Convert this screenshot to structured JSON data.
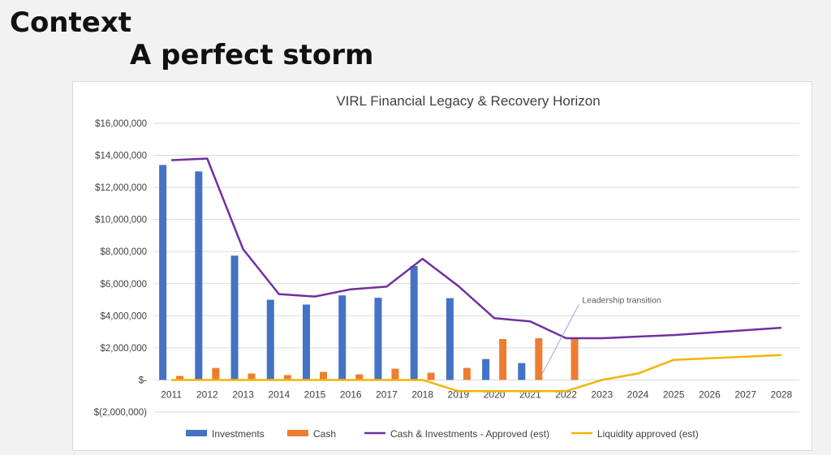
{
  "slide": {
    "title": "Context",
    "subtitle": "A perfect storm"
  },
  "chart_data": {
    "type": "bar",
    "title": "VIRL Financial Legacy & Recovery Horizon",
    "xlabel": "",
    "ylabel": "",
    "categories": [
      "2011",
      "2012",
      "2013",
      "2014",
      "2015",
      "2016",
      "2017",
      "2018",
      "2019",
      "2020",
      "2021",
      "2022",
      "2023",
      "2024",
      "2025",
      "2026",
      "2027",
      "2028"
    ],
    "ylim": [
      -2000000,
      16000000
    ],
    "yticks": [
      -2000000,
      0,
      2000000,
      4000000,
      6000000,
      8000000,
      10000000,
      12000000,
      14000000,
      16000000
    ],
    "ytick_labels": [
      "$(2,000,000)",
      "$-",
      "$2,000,000",
      "$4,000,000",
      "$6,000,000",
      "$8,000,000",
      "$10,000,000",
      "$12,000,000",
      "$14,000,000",
      "$16,000,000"
    ],
    "grid": true,
    "legend_position": "bottom",
    "series": [
      {
        "name": "Investments",
        "kind": "bar",
        "color": "#4472c4",
        "values": [
          13400000,
          13000000,
          7750000,
          5000000,
          4700000,
          5270000,
          5120000,
          7100000,
          5100000,
          1300000,
          1050000,
          null,
          null,
          null,
          null,
          null,
          null,
          null
        ]
      },
      {
        "name": "Cash",
        "kind": "bar",
        "color": "#ed7d31",
        "values": [
          250000,
          750000,
          400000,
          300000,
          500000,
          350000,
          700000,
          450000,
          750000,
          2550000,
          2600000,
          2600000,
          null,
          null,
          null,
          null,
          null,
          null
        ]
      },
      {
        "name": "Cash & Investments - Approved (est)",
        "kind": "line",
        "color": "#7030a0",
        "values": [
          13700000,
          13800000,
          8150000,
          5350000,
          5200000,
          5650000,
          5820000,
          7550000,
          5850000,
          3850000,
          3650000,
          2600000,
          2600000,
          2700000,
          2800000,
          2950000,
          3100000,
          3250000
        ]
      },
      {
        "name": "Liquidity approved (est)",
        "kind": "line",
        "color": "#f4b400",
        "values": [
          0,
          0,
          0,
          0,
          0,
          0,
          0,
          0,
          -700000,
          -700000,
          -700000,
          -700000,
          0,
          400000,
          1250000,
          1350000,
          1450000,
          1550000
        ]
      }
    ],
    "annotations": [
      {
        "text": "Leadership transition",
        "category": "2021"
      }
    ]
  }
}
